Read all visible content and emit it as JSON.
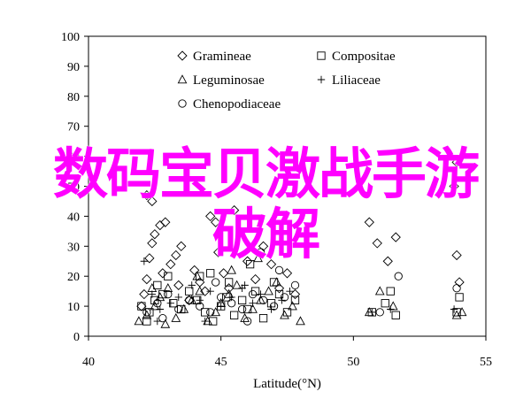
{
  "chart_data": {
    "type": "scatter",
    "xlabel": "Latitude(°N)",
    "ylabel": "",
    "xlim": [
      40,
      55
    ],
    "ylim": [
      0,
      100
    ],
    "xticks": [
      40,
      45,
      50,
      55
    ],
    "yticks": [
      0,
      10,
      20,
      30,
      40,
      50,
      60,
      70,
      80,
      90,
      100
    ],
    "grid": false,
    "legend_position": "top-left",
    "series": [
      {
        "name": "Gramineae",
        "marker": "diamond",
        "points": [
          [
            42.0,
            10
          ],
          [
            42.1,
            14
          ],
          [
            42.2,
            19
          ],
          [
            42.3,
            26
          ],
          [
            42.4,
            31
          ],
          [
            42.5,
            34
          ],
          [
            42.7,
            37
          ],
          [
            42.9,
            38
          ],
          [
            42.8,
            21
          ],
          [
            43.1,
            24
          ],
          [
            43.3,
            27
          ],
          [
            43.5,
            30
          ],
          [
            43.4,
            17
          ],
          [
            43.8,
            12
          ],
          [
            44.0,
            22
          ],
          [
            44.2,
            18
          ],
          [
            44.4,
            15
          ],
          [
            44.6,
            40
          ],
          [
            44.8,
            38
          ],
          [
            44.9,
            28
          ],
          [
            45.1,
            21
          ],
          [
            45.3,
            16
          ],
          [
            45.5,
            42
          ],
          [
            46.0,
            25
          ],
          [
            46.3,
            19
          ],
          [
            46.6,
            30
          ],
          [
            46.9,
            24
          ],
          [
            47.2,
            16
          ],
          [
            47.5,
            21
          ],
          [
            47.8,
            14
          ],
          [
            50.6,
            38
          ],
          [
            50.9,
            31
          ],
          [
            51.3,
            25
          ],
          [
            51.6,
            33
          ],
          [
            53.9,
            58
          ],
          [
            53.8,
            50
          ],
          [
            53.9,
            27
          ],
          [
            54.0,
            18
          ],
          [
            42.2,
            47
          ],
          [
            42.4,
            45
          ]
        ]
      },
      {
        "name": "Compositae",
        "marker": "square",
        "points": [
          [
            42.0,
            10
          ],
          [
            42.3,
            8
          ],
          [
            42.5,
            12
          ],
          [
            42.8,
            14
          ],
          [
            43.2,
            11
          ],
          [
            43.5,
            9
          ],
          [
            43.8,
            15
          ],
          [
            44.1,
            12
          ],
          [
            44.4,
            8
          ],
          [
            44.7,
            5
          ],
          [
            45.0,
            10
          ],
          [
            45.2,
            13
          ],
          [
            45.5,
            7
          ],
          [
            45.8,
            12
          ],
          [
            46.0,
            9
          ],
          [
            46.3,
            15
          ],
          [
            46.6,
            6
          ],
          [
            46.9,
            11
          ],
          [
            47.2,
            14
          ],
          [
            47.5,
            8
          ],
          [
            47.8,
            12
          ],
          [
            42.6,
            17
          ],
          [
            43.0,
            20
          ],
          [
            44.2,
            20
          ],
          [
            45.3,
            18
          ],
          [
            46.1,
            24
          ],
          [
            50.7,
            8
          ],
          [
            51.2,
            11
          ],
          [
            51.6,
            7
          ],
          [
            51.4,
            15
          ],
          [
            53.9,
            8
          ],
          [
            54.0,
            13
          ],
          [
            42.2,
            5
          ],
          [
            44.6,
            21
          ],
          [
            47.0,
            18
          ]
        ]
      },
      {
        "name": "Leguminosae",
        "marker": "triangle",
        "points": [
          [
            41.9,
            5
          ],
          [
            42.2,
            7
          ],
          [
            42.5,
            10
          ],
          [
            42.7,
            13
          ],
          [
            43.0,
            16
          ],
          [
            43.3,
            6
          ],
          [
            43.6,
            9
          ],
          [
            43.9,
            12
          ],
          [
            44.2,
            15
          ],
          [
            44.5,
            5
          ],
          [
            44.8,
            8
          ],
          [
            45.0,
            11
          ],
          [
            45.3,
            14
          ],
          [
            45.6,
            17
          ],
          [
            45.9,
            6
          ],
          [
            46.2,
            9
          ],
          [
            46.5,
            12
          ],
          [
            46.8,
            15
          ],
          [
            47.1,
            18
          ],
          [
            47.4,
            7
          ],
          [
            47.7,
            10
          ],
          [
            48.0,
            5
          ],
          [
            42.4,
            16
          ],
          [
            44.1,
            20
          ],
          [
            45.4,
            22
          ],
          [
            46.4,
            26
          ],
          [
            50.6,
            8
          ],
          [
            51.0,
            15
          ],
          [
            51.5,
            10
          ],
          [
            53.9,
            7
          ],
          [
            54.1,
            8
          ],
          [
            42.9,
            4
          ]
        ]
      },
      {
        "name": "Liliaceae",
        "marker": "plus",
        "points": [
          [
            42.1,
            25
          ],
          [
            42.4,
            14
          ],
          [
            42.7,
            9
          ],
          [
            43.1,
            11
          ],
          [
            43.4,
            13
          ],
          [
            43.9,
            17
          ],
          [
            44.2,
            12
          ],
          [
            44.6,
            15
          ],
          [
            45.0,
            10
          ],
          [
            45.4,
            13
          ],
          [
            45.8,
            16
          ],
          [
            46.2,
            11
          ],
          [
            46.5,
            14
          ],
          [
            46.9,
            9
          ],
          [
            47.3,
            12
          ],
          [
            47.6,
            15
          ],
          [
            45.9,
            17
          ],
          [
            46.5,
            27
          ],
          [
            42.6,
            5
          ],
          [
            44.4,
            5
          ],
          [
            50.7,
            8
          ],
          [
            51.4,
            9
          ],
          [
            53.8,
            9
          ]
        ]
      },
      {
        "name": "Chenopodiaceae",
        "marker": "circle",
        "points": [
          [
            42.2,
            8
          ],
          [
            42.6,
            11
          ],
          [
            43.0,
            14
          ],
          [
            43.4,
            9
          ],
          [
            43.8,
            12
          ],
          [
            44.2,
            10
          ],
          [
            44.6,
            8
          ],
          [
            45.0,
            13
          ],
          [
            45.4,
            11
          ],
          [
            45.8,
            9
          ],
          [
            46.2,
            14
          ],
          [
            46.6,
            12
          ],
          [
            47.0,
            10
          ],
          [
            47.4,
            13
          ],
          [
            47.8,
            17
          ],
          [
            46.5,
            28
          ],
          [
            47.2,
            22
          ],
          [
            44.8,
            18
          ],
          [
            51.0,
            8
          ],
          [
            51.7,
            20
          ],
          [
            53.9,
            16
          ],
          [
            42.8,
            6
          ],
          [
            46.0,
            5
          ]
        ]
      }
    ]
  },
  "overlay": {
    "line1": "数码宝贝激战手游",
    "line2": "破解"
  }
}
